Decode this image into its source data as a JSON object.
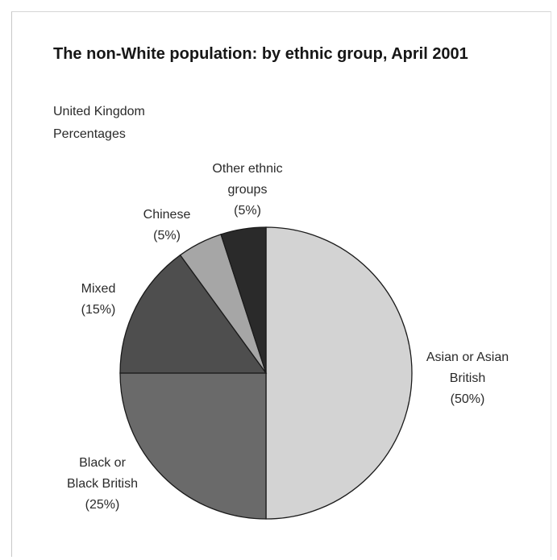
{
  "chart_data": {
    "type": "pie",
    "title": "The non-White population: by ethnic group, April 2001",
    "subtitle_lines": [
      "United Kingdom",
      "Percentages"
    ],
    "slices": [
      {
        "name": "Asian or Asian British",
        "value": 50,
        "label_lines": [
          "Asian or Asian",
          "British",
          "(50%)"
        ],
        "color": "#d3d3d3"
      },
      {
        "name": "Black or Black British",
        "value": 25,
        "label_lines": [
          "Black or",
          "Black British",
          "(25%)"
        ],
        "color": "#6a6a6a"
      },
      {
        "name": "Mixed",
        "value": 15,
        "label_lines": [
          "Mixed",
          "(15%)"
        ],
        "color": "#4e4e4e"
      },
      {
        "name": "Chinese",
        "value": 5,
        "label_lines": [
          "Chinese",
          "(5%)"
        ],
        "color": "#a6a6a6"
      },
      {
        "name": "Other ethnic groups",
        "value": 5,
        "label_lines": [
          "Other ethnic",
          "groups",
          "(5%)"
        ],
        "color": "#2a2a2a"
      }
    ]
  }
}
